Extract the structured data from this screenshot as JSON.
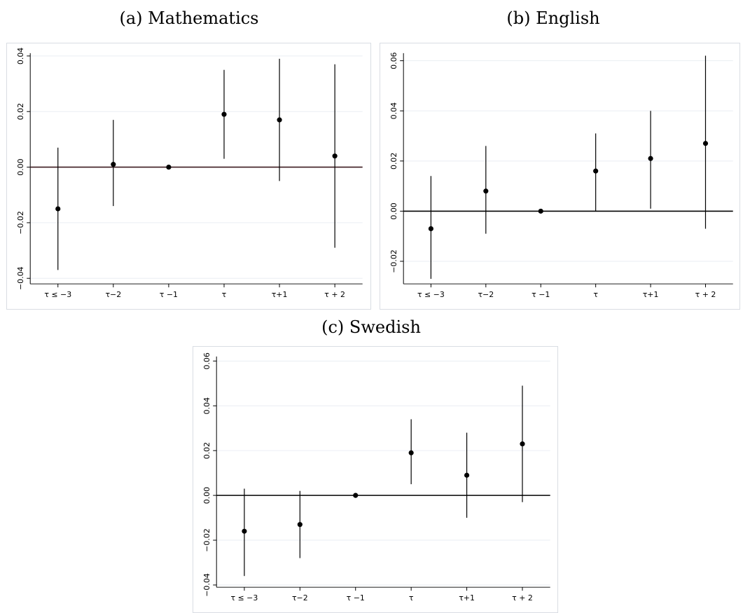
{
  "panels": {
    "a": {
      "title": "(a) Mathematics"
    },
    "b": {
      "title": "(b) English"
    },
    "c": {
      "title": "(c) Swedish"
    }
  },
  "colors": {
    "point": "#000000",
    "errorbar": "#000000",
    "gridline": "#eaeef3",
    "zero_line_a": "#3b1a1f",
    "zero_line": "#000000",
    "frame": "#d9dde3"
  },
  "chart_data": [
    {
      "panel": "a",
      "type": "scatter",
      "subtype": "coefficient plot with confidence intervals",
      "title": "(a) Mathematics",
      "categories": [
        "τ ≤ −3",
        "τ−2",
        "τ −1",
        "τ",
        "τ+1",
        "τ + 2"
      ],
      "values": [
        -0.015,
        0.001,
        0.0,
        0.019,
        0.017,
        0.004
      ],
      "ci_low": [
        -0.037,
        -0.014,
        0.0,
        0.003,
        -0.005,
        -0.029
      ],
      "ci_high": [
        0.007,
        0.017,
        0.0,
        0.035,
        0.039,
        0.037
      ],
      "yticks": [
        -0.04,
        -0.02,
        0.0,
        0.02,
        0.04
      ],
      "ytick_labels": [
        "−0.04",
        "−0.02",
        "0.00",
        "0.02",
        "0.04"
      ],
      "ylim": [
        -0.042,
        0.041
      ],
      "reference_line": 0,
      "grid": true,
      "xlabel": "",
      "ylabel": ""
    },
    {
      "panel": "b",
      "type": "scatter",
      "subtype": "coefficient plot with confidence intervals",
      "title": "(b) English",
      "categories": [
        "τ ≤ −3",
        "τ−2",
        "τ −1",
        "τ",
        "τ+1",
        "τ + 2"
      ],
      "values": [
        -0.007,
        0.008,
        0.0,
        0.016,
        0.021,
        0.027
      ],
      "ci_low": [
        -0.027,
        -0.009,
        0.0,
        0.0,
        0.001,
        -0.007
      ],
      "ci_high": [
        0.014,
        0.026,
        0.0,
        0.031,
        0.04,
        0.062
      ],
      "yticks": [
        -0.02,
        0.0,
        0.02,
        0.04,
        0.06
      ],
      "ytick_labels": [
        "−0.02",
        "0.00",
        "0.02",
        "0.04",
        "0.06"
      ],
      "ylim": [
        -0.029,
        0.063
      ],
      "reference_line": 0,
      "grid": true,
      "xlabel": "",
      "ylabel": ""
    },
    {
      "panel": "c",
      "type": "scatter",
      "subtype": "coefficient plot with confidence intervals",
      "title": "(c) Swedish",
      "categories": [
        "τ ≤ −3",
        "τ−2",
        "τ −1",
        "τ",
        "τ+1",
        "τ + 2"
      ],
      "values": [
        -0.016,
        -0.013,
        0.0,
        0.019,
        0.009,
        0.023
      ],
      "ci_low": [
        -0.036,
        -0.028,
        0.0,
        0.005,
        -0.01,
        -0.003
      ],
      "ci_high": [
        0.003,
        0.002,
        0.0,
        0.034,
        0.028,
        0.049
      ],
      "yticks": [
        -0.04,
        -0.02,
        0.0,
        0.02,
        0.04,
        0.06
      ],
      "ytick_labels": [
        "−0.04",
        "−0.02",
        "0.00",
        "0.02",
        "0.04",
        "0.06"
      ],
      "ylim": [
        -0.041,
        0.062
      ],
      "reference_line": 0,
      "grid": true,
      "xlabel": "",
      "ylabel": ""
    }
  ]
}
